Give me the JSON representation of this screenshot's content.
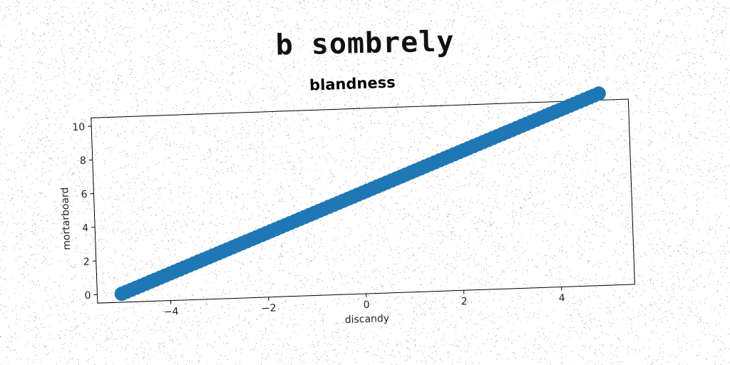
{
  "headline": "b sombrely",
  "chart_data": {
    "type": "scatter",
    "title": "blandness",
    "xlabel": "discandy",
    "ylabel": "mortarboard",
    "xlim": [
      -5.5,
      5.5
    ],
    "ylim": [
      -0.5,
      10.5
    ],
    "xticks": [
      -4,
      -2,
      0,
      2,
      4
    ],
    "yticks": [
      0,
      2,
      4,
      6,
      8,
      10
    ],
    "grid": false,
    "color": "#1f77b4",
    "series": [
      {
        "x_start": -5,
        "x_end": 4.9,
        "count": 100,
        "slope": 1.1,
        "intercept": 5.5
      }
    ]
  }
}
